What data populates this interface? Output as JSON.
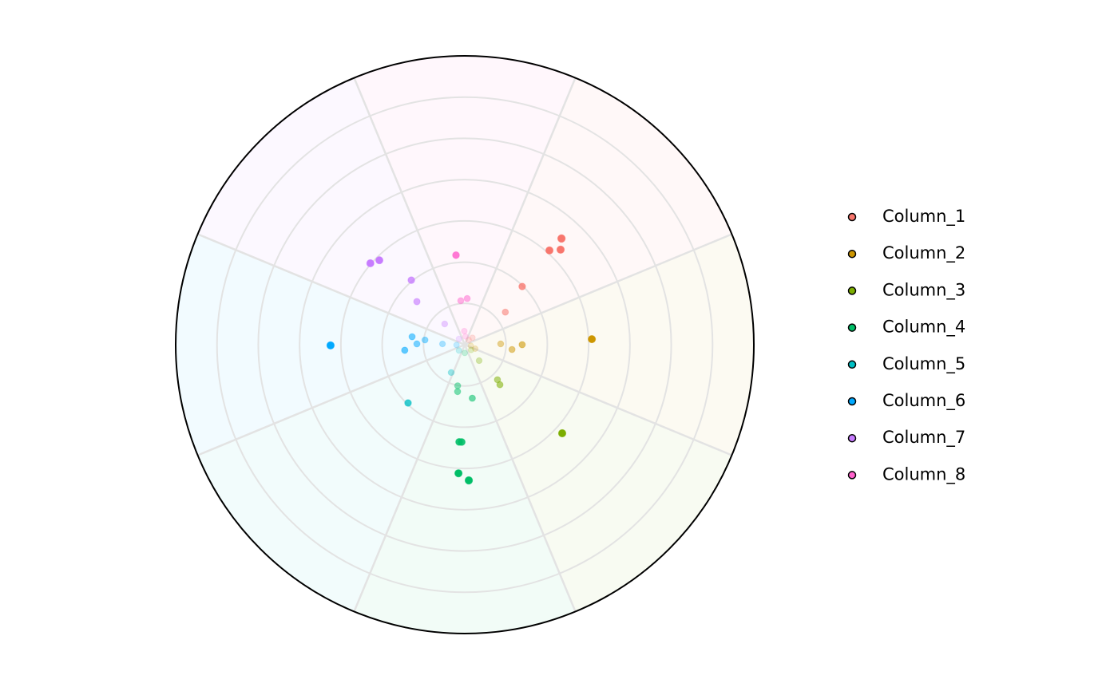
{
  "chart_data": {
    "type": "polar_scatter",
    "rlim": [
      0,
      7
    ],
    "rticks": [
      1,
      2,
      3,
      4,
      5,
      6
    ],
    "thetalim": [
      0,
      360
    ],
    "grid": true,
    "legend": "right",
    "series": [
      {
        "name": "Column_1",
        "color": "#f8766d",
        "theta": [
          42.3,
          41.9,
          45.2,
          44.6,
          51.2,
          48,
          40
        ],
        "values": [
          3.48,
          3.07,
          3.27,
          1.98,
          1.26,
          0.25,
          0.15
        ]
      },
      {
        "name": "Column_2",
        "color": "#cd9600",
        "theta": [
          87.5,
          90,
          88.7,
          95.8,
          111,
          100
        ],
        "values": [
          3.08,
          1.39,
          0.87,
          1.15,
          0.27,
          0.15
        ]
      },
      {
        "name": "Column_3",
        "color": "#7cae00",
        "theta": [
          132.3,
          137,
          138.7,
          138,
          130
        ],
        "values": [
          3.19,
          1.16,
          1.29,
          0.52,
          0.2
        ]
      },
      {
        "name": "Column_4",
        "color": "#00be67",
        "theta": [
          178.3,
          182.8,
          183.3,
          181.8,
          172,
          188.7,
          189.8,
          180
        ],
        "values": [
          3.29,
          3.12,
          2.36,
          2.36,
          1.31,
          1.15,
          1.01,
          0.2
        ]
      },
      {
        "name": "Column_5",
        "color": "#00bfc4",
        "theta": [
          224.2,
          206,
          225
        ],
        "values": [
          1.97,
          0.75,
          0.2
        ]
      },
      {
        "name": "Column_6",
        "color": "#00a9ff",
        "theta": [
          269.7,
          278.6,
          264.7,
          271,
          276.8,
          272,
          268
        ],
        "values": [
          3.25,
          1.29,
          1.46,
          1.16,
          0.97,
          0.54,
          0.2
        ]
      },
      {
        "name": "Column_7",
        "color": "#c77cff",
        "theta": [
          310.8,
          314.7,
          320.4,
          312,
          316,
          315
        ],
        "values": [
          3.02,
          2.91,
          2.03,
          1.56,
          0.7,
          0.2
        ]
      },
      {
        "name": "Column_8",
        "color": "#ff61cc",
        "theta": [
          354.4,
          3,
          354.8,
          358,
          5
        ],
        "values": [
          2.18,
          1.12,
          1.07,
          0.33,
          0.2
        ]
      }
    ]
  }
}
